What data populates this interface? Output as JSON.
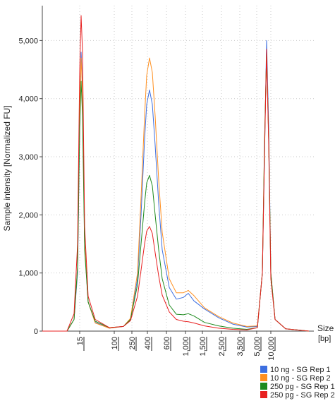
{
  "chart_data": {
    "type": "line",
    "title": "",
    "ylabel": "Sample intensity [Normalized FU]",
    "xlabel": "Size",
    "xunit": "[bp]",
    "ylim": [
      0,
      5600
    ],
    "yticks": [
      0,
      1000,
      2000,
      3000,
      4000,
      5000
    ],
    "ytick_labels": [
      "0",
      "1,000",
      "2,000",
      "3,000",
      "4,000",
      "5,000"
    ],
    "xticks": [
      "15",
      "100",
      "250",
      "400",
      "600",
      "1,000",
      "1,500",
      "2,500",
      "3,500",
      "5,000",
      "10,000"
    ],
    "x_scale": "ladder (non-linear)",
    "grid": true,
    "legend_position": "bottom-right",
    "series": [
      {
        "name": "10 ng - SG Rep 1",
        "color": "#3d6fe0",
        "points": [
          [
            0,
            0
          ],
          [
            35,
            0
          ],
          [
            45,
            200
          ],
          [
            50,
            1000
          ],
          [
            53,
            3500
          ],
          [
            55,
            4800
          ],
          [
            57,
            4200
          ],
          [
            60,
            1500
          ],
          [
            65,
            500
          ],
          [
            75,
            150
          ],
          [
            95,
            50
          ],
          [
            115,
            80
          ],
          [
            125,
            200
          ],
          [
            135,
            900
          ],
          [
            140,
            2000
          ],
          [
            145,
            3300
          ],
          [
            148,
            3900
          ],
          [
            152,
            4150
          ],
          [
            156,
            3900
          ],
          [
            160,
            3200
          ],
          [
            165,
            2200
          ],
          [
            170,
            1400
          ],
          [
            180,
            750
          ],
          [
            190,
            550
          ],
          [
            200,
            580
          ],
          [
            207,
            650
          ],
          [
            215,
            520
          ],
          [
            230,
            380
          ],
          [
            250,
            230
          ],
          [
            270,
            120
          ],
          [
            290,
            70
          ],
          [
            305,
            80
          ],
          [
            312,
            1000
          ],
          [
            315,
            3000
          ],
          [
            318,
            5000
          ],
          [
            321,
            3500
          ],
          [
            324,
            1000
          ],
          [
            330,
            200
          ],
          [
            345,
            40
          ],
          [
            378,
            0
          ]
        ]
      },
      {
        "name": "10 ng - SG Rep 2",
        "color": "#ff9020",
        "points": [
          [
            0,
            0
          ],
          [
            35,
            0
          ],
          [
            45,
            200
          ],
          [
            50,
            1100
          ],
          [
            53,
            3800
          ],
          [
            55,
            4700
          ],
          [
            57,
            4100
          ],
          [
            60,
            1500
          ],
          [
            65,
            500
          ],
          [
            75,
            140
          ],
          [
            95,
            50
          ],
          [
            115,
            80
          ],
          [
            125,
            220
          ],
          [
            135,
            1000
          ],
          [
            140,
            2300
          ],
          [
            145,
            3700
          ],
          [
            148,
            4400
          ],
          [
            152,
            4700
          ],
          [
            156,
            4450
          ],
          [
            160,
            3700
          ],
          [
            165,
            2600
          ],
          [
            170,
            1700
          ],
          [
            180,
            900
          ],
          [
            190,
            660
          ],
          [
            200,
            660
          ],
          [
            207,
            700
          ],
          [
            215,
            610
          ],
          [
            230,
            400
          ],
          [
            250,
            250
          ],
          [
            270,
            140
          ],
          [
            290,
            80
          ],
          [
            305,
            90
          ],
          [
            312,
            1000
          ],
          [
            315,
            3200
          ],
          [
            318,
            4750
          ],
          [
            321,
            3300
          ],
          [
            324,
            1000
          ],
          [
            330,
            200
          ],
          [
            345,
            40
          ],
          [
            378,
            0
          ]
        ]
      },
      {
        "name": "250 pg - SG Rep 1",
        "color": "#1d8a1d",
        "points": [
          [
            0,
            0
          ],
          [
            35,
            0
          ],
          [
            45,
            200
          ],
          [
            50,
            1100
          ],
          [
            53,
            3500
          ],
          [
            55,
            4300
          ],
          [
            57,
            3700
          ],
          [
            60,
            1400
          ],
          [
            65,
            500
          ],
          [
            75,
            170
          ],
          [
            95,
            60
          ],
          [
            115,
            80
          ],
          [
            125,
            200
          ],
          [
            135,
            800
          ],
          [
            140,
            1500
          ],
          [
            145,
            2200
          ],
          [
            148,
            2550
          ],
          [
            152,
            2680
          ],
          [
            156,
            2500
          ],
          [
            160,
            2000
          ],
          [
            165,
            1400
          ],
          [
            170,
            900
          ],
          [
            180,
            450
          ],
          [
            190,
            290
          ],
          [
            200,
            280
          ],
          [
            207,
            300
          ],
          [
            215,
            260
          ],
          [
            230,
            150
          ],
          [
            250,
            90
          ],
          [
            270,
            50
          ],
          [
            290,
            30
          ],
          [
            305,
            60
          ],
          [
            312,
            1000
          ],
          [
            315,
            3200
          ],
          [
            318,
            4800
          ],
          [
            321,
            3300
          ],
          [
            324,
            1000
          ],
          [
            330,
            200
          ],
          [
            345,
            40
          ],
          [
            378,
            0
          ]
        ]
      },
      {
        "name": "250 pg - SG Rep 2",
        "color": "#e82020",
        "points": [
          [
            0,
            0
          ],
          [
            35,
            0
          ],
          [
            45,
            300
          ],
          [
            50,
            1500
          ],
          [
            53,
            4500
          ],
          [
            55,
            5430
          ],
          [
            57,
            4800
          ],
          [
            60,
            1800
          ],
          [
            65,
            600
          ],
          [
            75,
            200
          ],
          [
            95,
            60
          ],
          [
            115,
            80
          ],
          [
            125,
            180
          ],
          [
            135,
            600
          ],
          [
            140,
            1050
          ],
          [
            145,
            1500
          ],
          [
            148,
            1720
          ],
          [
            152,
            1800
          ],
          [
            156,
            1680
          ],
          [
            160,
            1350
          ],
          [
            165,
            950
          ],
          [
            170,
            620
          ],
          [
            180,
            330
          ],
          [
            190,
            200
          ],
          [
            200,
            170
          ],
          [
            207,
            160
          ],
          [
            215,
            140
          ],
          [
            230,
            90
          ],
          [
            250,
            50
          ],
          [
            270,
            30
          ],
          [
            290,
            20
          ],
          [
            305,
            60
          ],
          [
            312,
            1000
          ],
          [
            315,
            3000
          ],
          [
            318,
            4850
          ],
          [
            321,
            3200
          ],
          [
            324,
            900
          ],
          [
            330,
            200
          ],
          [
            345,
            40
          ],
          [
            378,
            0
          ]
        ]
      }
    ]
  }
}
